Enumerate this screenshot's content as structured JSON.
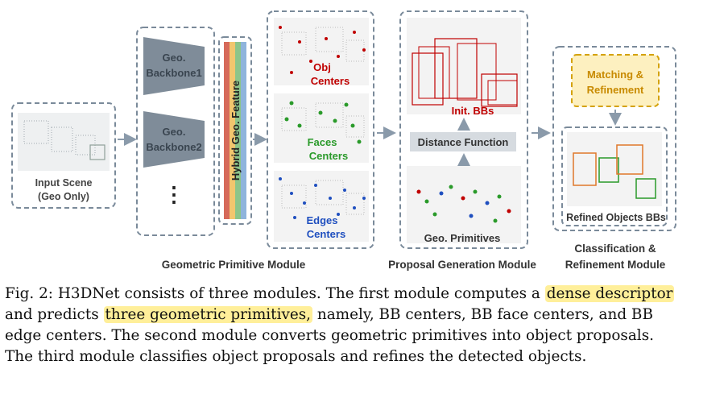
{
  "figure": {
    "input": {
      "label_line1": "Input Scene",
      "label_line2": "(Geo Only)"
    },
    "backbones": {
      "b1_line1": "Geo.",
      "b1_line2": "Backbone1",
      "b2_line1": "Geo.",
      "b2_line2": "Backbone2",
      "ellipsis": "⋮"
    },
    "feature": {
      "label": "Hybrid Geo. Feature"
    },
    "primitives": {
      "obj_line1": "Obj",
      "obj_line2": "Centers",
      "faces_line1": "Faces",
      "faces_line2": "Centers",
      "edges_line1": "Edges",
      "edges_line2": "Centers",
      "module_label": "Geometric Primitive Module"
    },
    "proposal": {
      "init_bbs": "Init. BBs",
      "distance_function": "Distance Function",
      "geo_primitives": "Geo. Primitives",
      "module_label": "Proposal Generation Module"
    },
    "classification": {
      "matching_line1": "Matching &",
      "matching_line2": "Refinement",
      "refined": "Refined Objects BBs",
      "module_line1": "Classification &",
      "module_line2": "Refinement Module"
    },
    "colors": {
      "obj": "#c00000",
      "faces": "#2a9a2a",
      "edges": "#1f4fbf",
      "dashed_border": "#7a8a9a",
      "backbone_fill": "#7f8c99",
      "matching_fill": "#fdf0c0",
      "matching_border": "#d4a20b",
      "matching_text": "#c88a00"
    }
  },
  "caption": {
    "l1_a": "Fig. 2: H3DNet consists of three modules. The first module computes a ",
    "l1_hl": "dense descriptor",
    "l2_a": "and predicts ",
    "l2_hl": "three geometric primitives,",
    "l2_b": " namely, BB centers, BB face centers, and BB",
    "l3": "edge centers. The second module converts geometric primitives into object proposals.",
    "l4": "The third module classifies object proposals and refines the detected objects."
  }
}
